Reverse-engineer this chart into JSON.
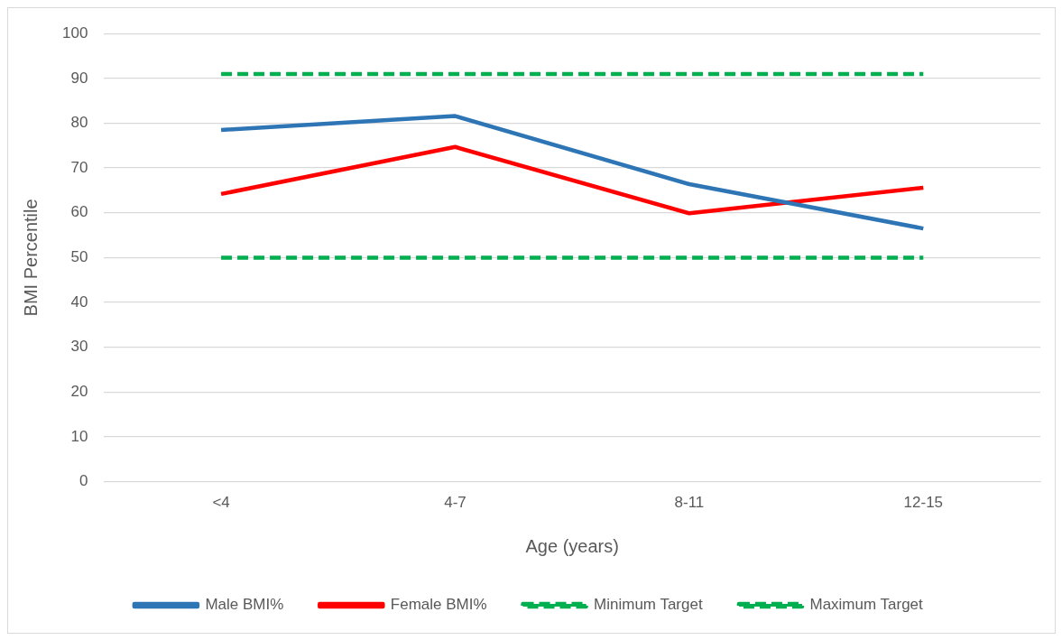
{
  "chart_data": {
    "type": "line",
    "xlabel": "Age (years)",
    "ylabel": "BMI Percentile",
    "categories": [
      "<4",
      "4-7",
      "8-11",
      "12-15"
    ],
    "series": [
      {
        "name": "Male BMI%",
        "color": "#2e75b6",
        "values": [
          78.5,
          81.6,
          66.4,
          56.5
        ]
      },
      {
        "name": "Female BMI%",
        "color": "#ff0000",
        "values": [
          64.2,
          74.7,
          59.9,
          65.6
        ]
      },
      {
        "name": "Minimum Target",
        "color": "#00b050",
        "values": [
          50,
          50,
          50,
          50
        ],
        "line_style": "dashed"
      },
      {
        "name": "Maximum Target",
        "color": "#00b050",
        "values": [
          91,
          91,
          91,
          91
        ],
        "line_style": "dashed"
      }
    ],
    "ylim": [
      0,
      100
    ],
    "yticks": [
      0,
      10,
      20,
      30,
      40,
      50,
      60,
      70,
      80,
      90,
      100
    ],
    "grid": "y",
    "legend": "bottom",
    "marker": "none",
    "line_style": "solid"
  }
}
